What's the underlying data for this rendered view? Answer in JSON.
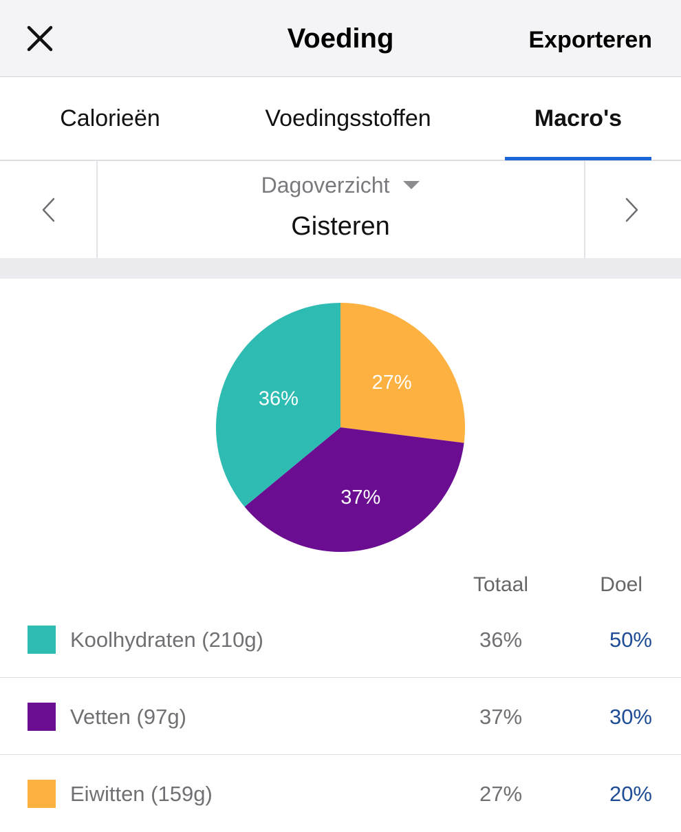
{
  "header": {
    "title": "Voeding",
    "close_icon": "close-icon",
    "export_label": "Exporteren"
  },
  "tabs": [
    {
      "label": "Calorieën",
      "active": false
    },
    {
      "label": "Voedingsstoffen",
      "active": false
    },
    {
      "label": "Macro's",
      "active": true
    }
  ],
  "colors": {
    "accent": "#1a66d9",
    "carbs": "#2ebbb2",
    "fat": "#6a0d91",
    "protein": "#fdb140",
    "goal_text": "#1e4c95"
  },
  "period": {
    "select_label": "Dagoverzicht",
    "date_label": "Gisteren",
    "prev_icon": "chevron-left-icon",
    "next_icon": "chevron-right-icon"
  },
  "chart_data": {
    "type": "pie",
    "slices": [
      {
        "label": "Eiwitten",
        "value": 27,
        "value_label": "27%",
        "color": "#fdb140"
      },
      {
        "label": "Vetten",
        "value": 37,
        "value_label": "37%",
        "color": "#6a0d91"
      },
      {
        "label": "Koolhydraten",
        "value": 36,
        "value_label": "36%",
        "color": "#2ebbb2"
      }
    ]
  },
  "table": {
    "col_total": "Totaal",
    "col_goal": "Doel",
    "rows": [
      {
        "label": "Koolhydraten (210g)",
        "total": "36%",
        "goal": "50%",
        "color": "#2ebbb2"
      },
      {
        "label": "Vetten (97g)",
        "total": "37%",
        "goal": "30%",
        "color": "#6a0d91"
      },
      {
        "label": "Eiwitten (159g)",
        "total": "27%",
        "goal": "20%",
        "color": "#fdb140"
      }
    ]
  }
}
